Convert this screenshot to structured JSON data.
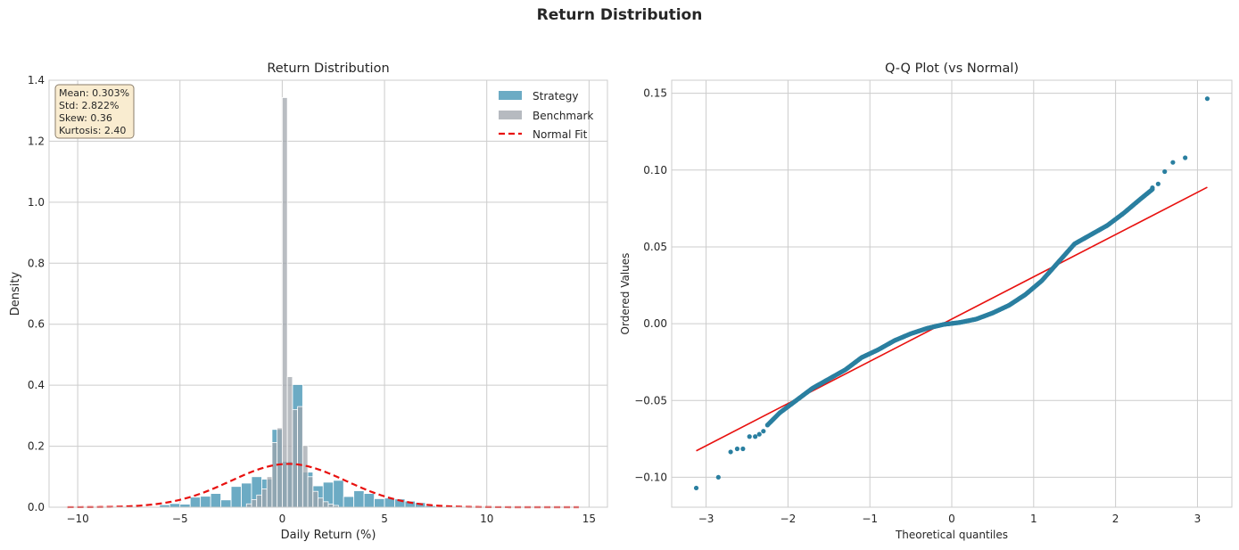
{
  "figure": {
    "title": "Return Distribution",
    "colors": {
      "strategy": "#3b8fb0",
      "benchmark": "#9ea3ab",
      "normal_fit": "#e8110f",
      "qq_points": "#2a7fa0",
      "qq_line": "#e8110f",
      "stats_box_fill": "#f9ecd0",
      "stats_box_edge": "#8a7d6a"
    }
  },
  "chart_data": [
    {
      "type": "bar",
      "title": "Return Distribution",
      "xlabel": "Daily Return (%)",
      "ylabel": "Density",
      "xlim": [
        -11.4,
        15.9
      ],
      "ylim": [
        0,
        1.4
      ],
      "xticks": [
        -10,
        -5,
        0,
        5,
        10,
        15
      ],
      "xtick_labels": [
        "−10",
        "−5",
        "0",
        "5",
        "10",
        "15"
      ],
      "yticks": [
        0,
        0.2,
        0.4,
        0.6,
        0.8,
        1.0,
        1.2,
        1.4
      ],
      "ytick_labels": [
        "0.0",
        "0.2",
        "0.4",
        "0.6",
        "0.8",
        "1.0",
        "1.2",
        "1.4"
      ],
      "grid": true,
      "legend_position": "top-right",
      "legend": [
        "Strategy",
        "Benchmark",
        "Normal Fit"
      ],
      "stats_box": [
        "Mean: 0.303%",
        "Std: 2.822%",
        "Skew: 0.36",
        "Kurtosis: 2.40"
      ],
      "series": [
        {
          "name": "Strategy",
          "bin_width": 0.5,
          "bins": [
            [
              -6.0,
              0.008
            ],
            [
              -5.5,
              0.012
            ],
            [
              -5.0,
              0.01
            ],
            [
              -4.5,
              0.033
            ],
            [
              -4.0,
              0.036
            ],
            [
              -3.5,
              0.045
            ],
            [
              -3.0,
              0.024
            ],
            [
              -2.5,
              0.068
            ],
            [
              -2.0,
              0.079
            ],
            [
              -1.5,
              0.1
            ],
            [
              -1.0,
              0.092
            ],
            [
              -0.5,
              0.255
            ],
            [
              0.0,
              0.15
            ],
            [
              0.5,
              0.402
            ],
            [
              1.0,
              0.115
            ],
            [
              1.5,
              0.07
            ],
            [
              2.0,
              0.082
            ],
            [
              2.5,
              0.088
            ],
            [
              3.0,
              0.035
            ],
            [
              3.5,
              0.054
            ],
            [
              4.0,
              0.045
            ],
            [
              4.5,
              0.028
            ],
            [
              5.0,
              0.03
            ],
            [
              5.5,
              0.027
            ],
            [
              6.0,
              0.02
            ],
            [
              6.5,
              0.015
            ],
            [
              7.0,
              0.005
            ]
          ]
        },
        {
          "name": "Benchmark",
          "bin_width": 0.25,
          "bins": [
            [
              -1.75,
              0.011
            ],
            [
              -1.5,
              0.025
            ],
            [
              -1.25,
              0.04
            ],
            [
              -1.0,
              0.06
            ],
            [
              -0.75,
              0.1
            ],
            [
              -0.5,
              0.212
            ],
            [
              -0.25,
              0.26
            ],
            [
              0.0,
              1.343
            ],
            [
              0.25,
              0.428
            ],
            [
              0.5,
              0.32
            ],
            [
              0.75,
              0.33
            ],
            [
              1.0,
              0.202
            ],
            [
              1.25,
              0.1
            ],
            [
              1.5,
              0.052
            ],
            [
              1.75,
              0.03
            ],
            [
              2.0,
              0.018
            ],
            [
              2.25,
              0.01
            ],
            [
              2.5,
              0.006
            ]
          ]
        },
        {
          "name": "Normal Fit",
          "style": "dashed",
          "mean": 0.303,
          "std": 2.822,
          "x_range": [
            -10.5,
            14.5
          ]
        }
      ]
    },
    {
      "type": "scatter",
      "title": "Q-Q Plot (vs Normal)",
      "xlabel": "Theoretical quantiles",
      "ylabel": "Ordered Values",
      "xlim": [
        -3.42,
        3.42
      ],
      "ylim": [
        -0.1195,
        0.1585
      ],
      "xticks": [
        -3,
        -2,
        -1,
        0,
        1,
        2,
        3
      ],
      "xtick_labels": [
        "−3",
        "−2",
        "−1",
        "0",
        "1",
        "2",
        "3"
      ],
      "yticks": [
        -0.1,
        -0.05,
        0.0,
        0.05,
        0.1,
        0.15
      ],
      "ytick_labels": [
        "−0.10",
        "−0.05",
        "0.00",
        "0.05",
        "0.10",
        "0.15"
      ],
      "grid": true,
      "fit_line": {
        "slope": 0.0275,
        "intercept": 0.003,
        "x_range": [
          -3.12,
          3.12
        ]
      },
      "tail_points": [
        [
          -3.12,
          -0.107
        ],
        [
          -2.85,
          -0.1
        ],
        [
          -2.7,
          -0.0835
        ],
        [
          -2.62,
          -0.0815
        ],
        [
          -2.55,
          -0.0815
        ],
        [
          -2.47,
          -0.0735
        ],
        [
          -2.4,
          -0.0735
        ],
        [
          -2.35,
          -0.072
        ],
        [
          -2.3,
          -0.07
        ],
        [
          -2.25,
          -0.066
        ],
        [
          2.45,
          0.0885
        ],
        [
          2.52,
          0.091
        ],
        [
          2.6,
          0.099
        ],
        [
          2.7,
          0.105
        ],
        [
          2.85,
          0.108
        ],
        [
          3.12,
          0.1465
        ]
      ],
      "body_curve": [
        [
          -2.25,
          -0.066
        ],
        [
          -2.1,
          -0.058
        ],
        [
          -1.9,
          -0.05
        ],
        [
          -1.7,
          -0.042
        ],
        [
          -1.5,
          -0.036
        ],
        [
          -1.3,
          -0.03
        ],
        [
          -1.1,
          -0.022
        ],
        [
          -0.9,
          -0.017
        ],
        [
          -0.7,
          -0.011
        ],
        [
          -0.5,
          -0.0065
        ],
        [
          -0.3,
          -0.003
        ],
        [
          -0.1,
          -0.0005
        ],
        [
          0.1,
          0.0008
        ],
        [
          0.3,
          0.003
        ],
        [
          0.5,
          0.007
        ],
        [
          0.7,
          0.012
        ],
        [
          0.9,
          0.019
        ],
        [
          1.1,
          0.028
        ],
        [
          1.3,
          0.04
        ],
        [
          1.5,
          0.052
        ],
        [
          1.7,
          0.058
        ],
        [
          1.9,
          0.064
        ],
        [
          2.1,
          0.072
        ],
        [
          2.3,
          0.081
        ],
        [
          2.45,
          0.0875
        ]
      ],
      "n_points": 500
    }
  ]
}
